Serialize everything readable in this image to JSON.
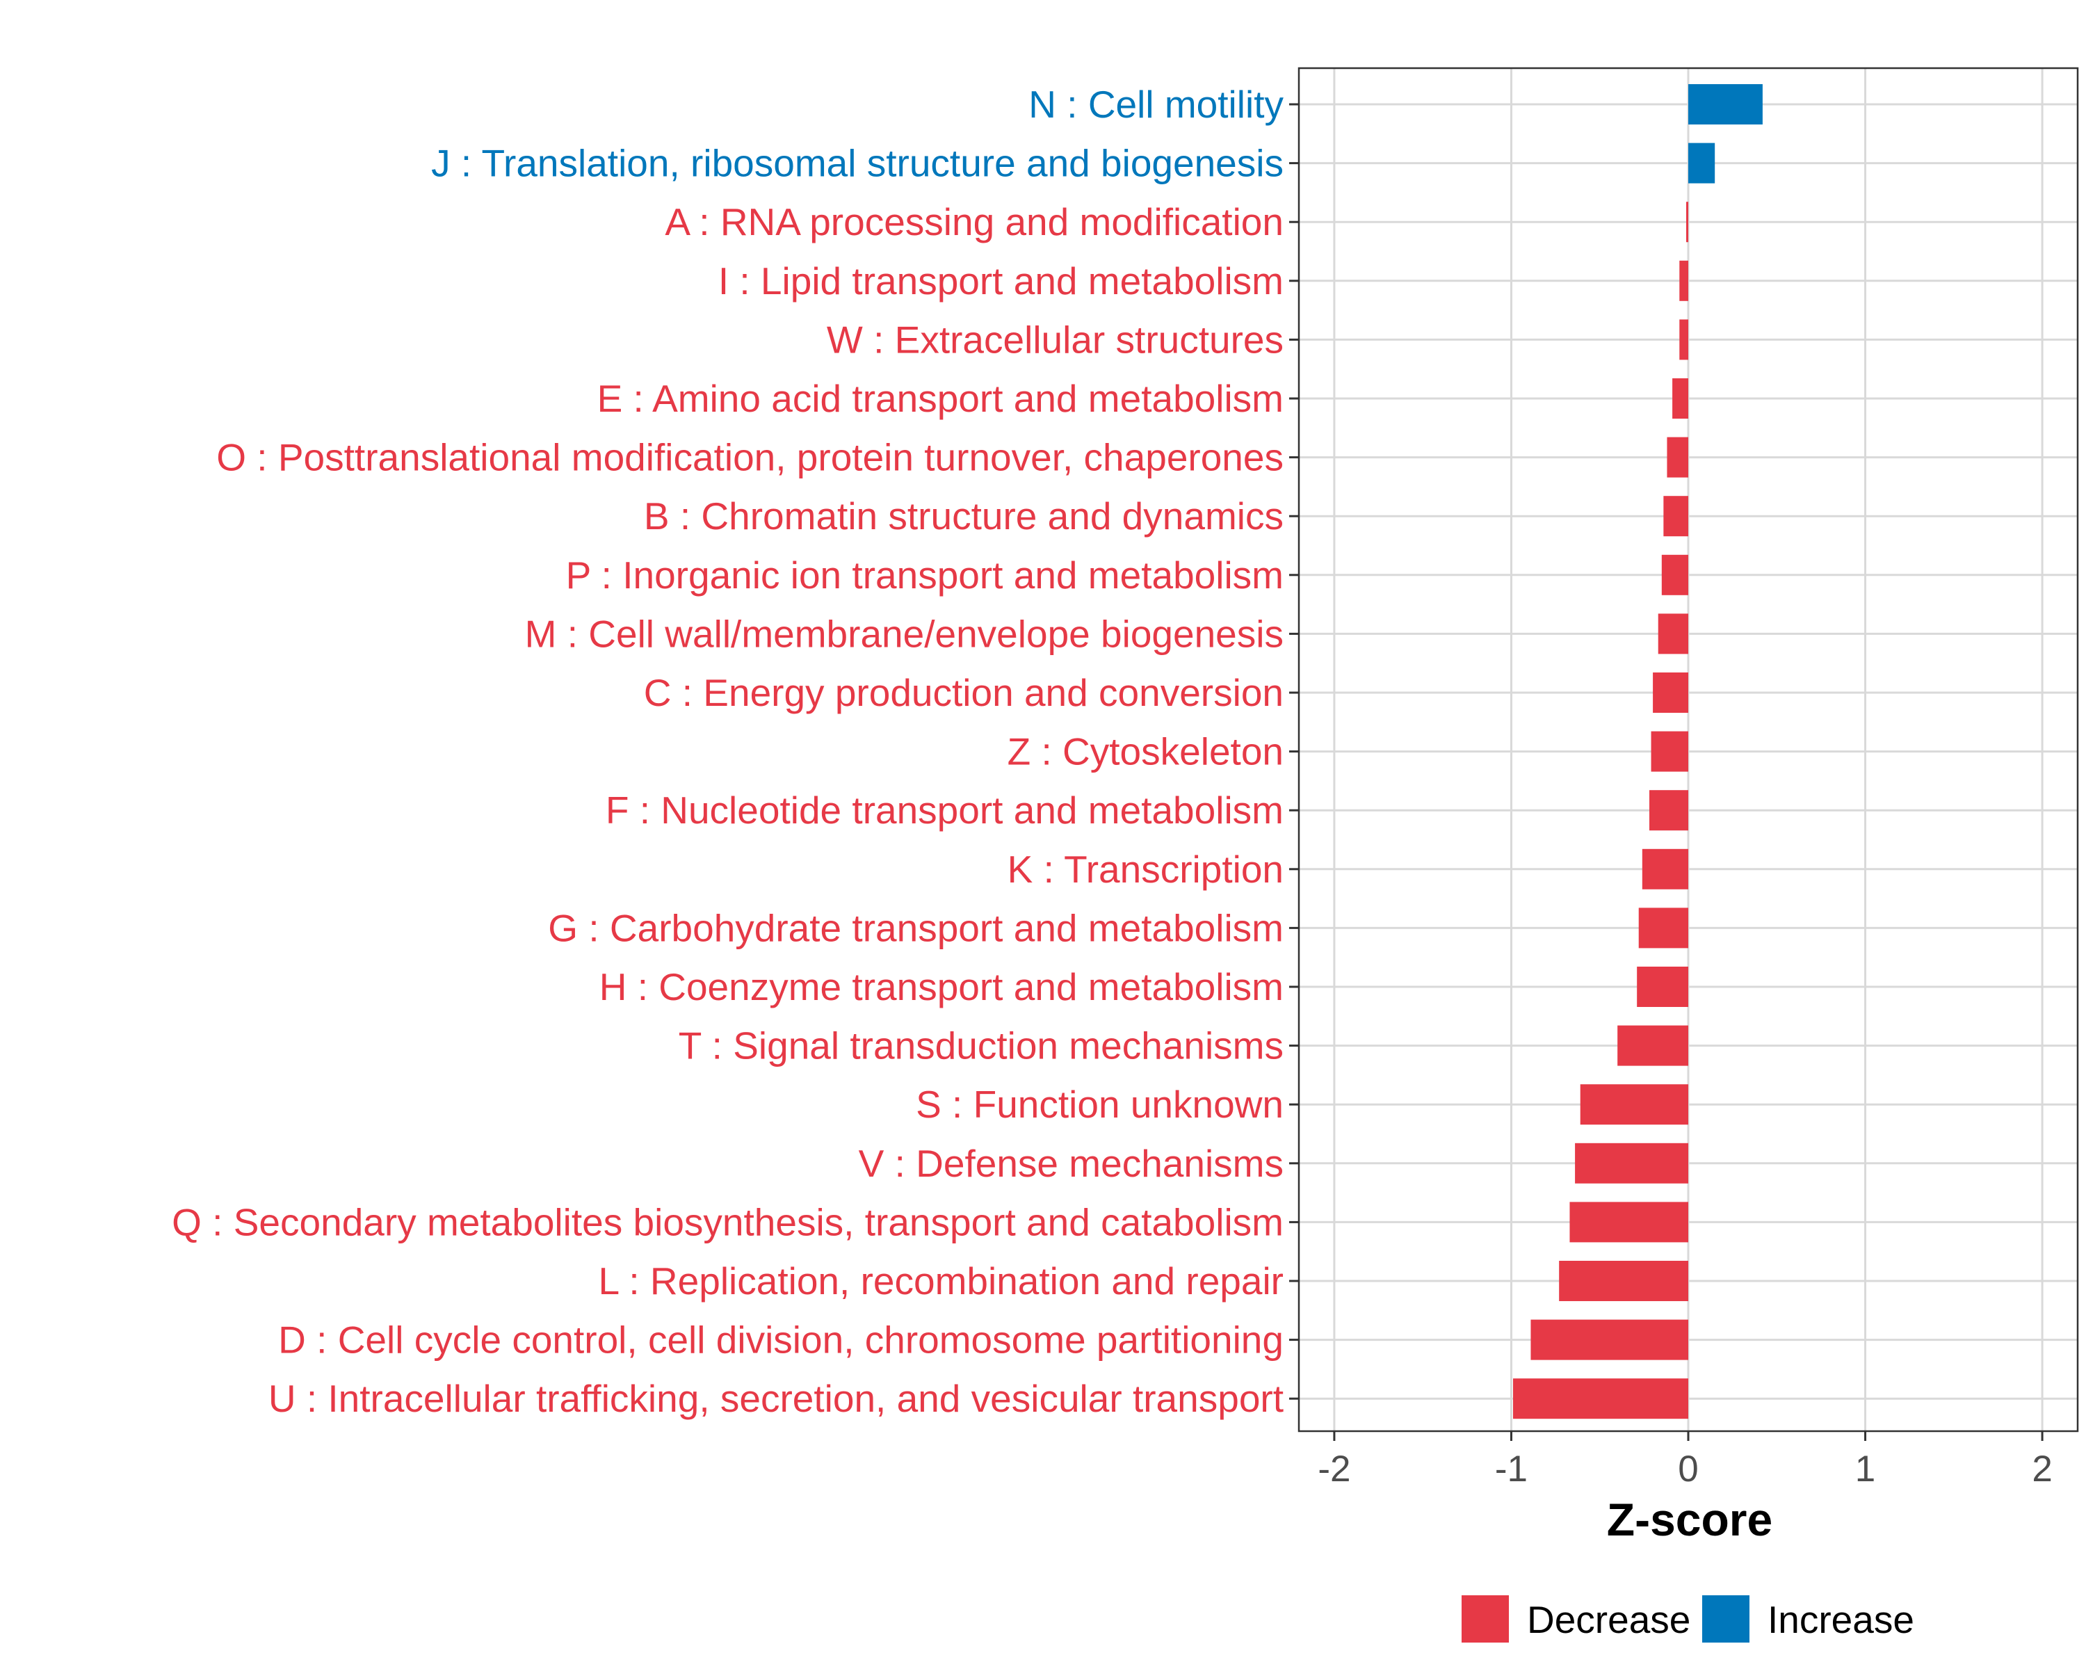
{
  "chart_data": {
    "type": "bar",
    "orientation": "horizontal",
    "title": "",
    "xlabel": "Z-score",
    "ylabel": "",
    "xlim": [
      -2.2,
      2.2
    ],
    "x_ticks": [
      -2,
      -1,
      0,
      1,
      2
    ],
    "x_tick_labels": [
      "-2",
      "-1",
      "0",
      "1",
      "2"
    ],
    "grid": true,
    "legend_position": "bottom",
    "colors": {
      "Decrease": "#e63946",
      "Increase": "#0077bb"
    },
    "legend": [
      {
        "label": "Decrease",
        "color": "#e63946"
      },
      {
        "label": "Increase",
        "color": "#0077bb"
      }
    ],
    "categories": [
      "N : Cell motility",
      "J : Translation, ribosomal structure and biogenesis",
      "A : RNA processing and modification",
      "I : Lipid transport and metabolism",
      "W : Extracellular structures",
      "E : Amino acid transport and metabolism",
      "O : Posttranslational modification, protein turnover, chaperones",
      "B : Chromatin structure and dynamics",
      "P : Inorganic ion transport and metabolism",
      "M : Cell wall/membrane/envelope biogenesis",
      "C : Energy production and conversion",
      "Z : Cytoskeleton",
      "F : Nucleotide transport and metabolism",
      "K : Transcription",
      "G : Carbohydrate transport and metabolism",
      "H : Coenzyme transport and metabolism",
      "T : Signal transduction mechanisms",
      "S : Function unknown",
      "V : Defense mechanisms",
      "Q : Secondary metabolites biosynthesis, transport and catabolism",
      "L : Replication, recombination and repair",
      "D : Cell cycle control, cell division, chromosome partitioning",
      "U : Intracellular trafficking, secretion, and vesicular transport"
    ],
    "values": [
      0.42,
      0.15,
      -0.01,
      -0.05,
      -0.05,
      -0.09,
      -0.12,
      -0.14,
      -0.15,
      -0.17,
      -0.2,
      -0.21,
      -0.22,
      -0.26,
      -0.28,
      -0.29,
      -0.4,
      -0.61,
      -0.64,
      -0.67,
      -0.73,
      -0.89,
      -0.99
    ],
    "groups": [
      "Increase",
      "Increase",
      "Decrease",
      "Decrease",
      "Decrease",
      "Decrease",
      "Decrease",
      "Decrease",
      "Decrease",
      "Decrease",
      "Decrease",
      "Decrease",
      "Decrease",
      "Decrease",
      "Decrease",
      "Decrease",
      "Decrease",
      "Decrease",
      "Decrease",
      "Decrease",
      "Decrease",
      "Decrease",
      "Decrease"
    ]
  }
}
